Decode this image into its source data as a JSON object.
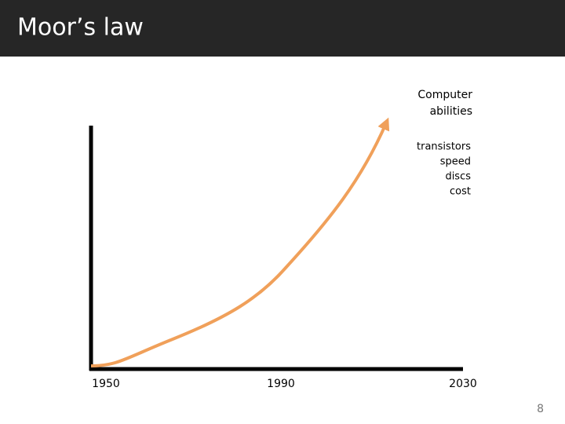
{
  "header": {
    "title": "Moor’s law"
  },
  "figure": {
    "y_label": [
      "Computer",
      "abilities"
    ],
    "y_items": [
      "transistors",
      "speed",
      "discs",
      "cost"
    ],
    "x_labels": [
      "1950",
      "1990",
      "2030"
    ]
  },
  "footer": {
    "page_number": "8"
  }
}
